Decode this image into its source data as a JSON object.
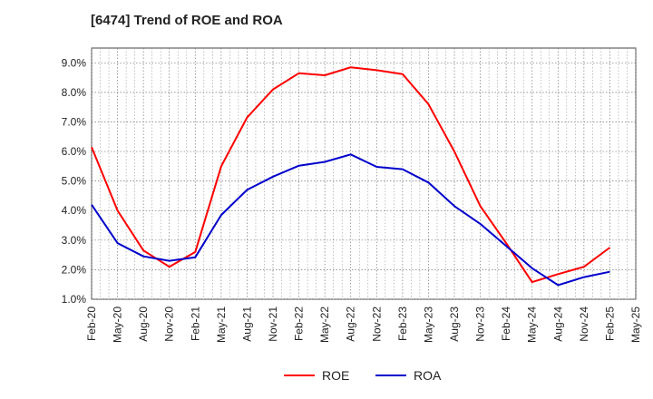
{
  "chart_data": {
    "type": "line",
    "title": "[6474]  Trend of ROE and ROA",
    "categories": [
      "Feb-20",
      "May-20",
      "Aug-20",
      "Nov-20",
      "Feb-21",
      "May-21",
      "Aug-21",
      "Nov-21",
      "Feb-22",
      "May-22",
      "Aug-22",
      "Nov-22",
      "Feb-23",
      "May-23",
      "Aug-23",
      "Nov-23",
      "Feb-24",
      "May-24",
      "Aug-24",
      "Nov-24",
      "Feb-25",
      "May-25"
    ],
    "yticks": [
      "1.0%",
      "2.0%",
      "3.0%",
      "4.0%",
      "5.0%",
      "6.0%",
      "7.0%",
      "8.0%",
      "9.0%"
    ],
    "ylim": [
      1.0,
      9.5
    ],
    "grid": true,
    "legend_position": "bottom",
    "series": [
      {
        "name": "ROE",
        "color": "#ff0000",
        "values": [
          6.15,
          4.0,
          2.65,
          2.1,
          2.6,
          5.5,
          7.15,
          8.1,
          8.65,
          8.58,
          8.85,
          8.75,
          8.62,
          7.6,
          6.0,
          4.15,
          2.9,
          1.58,
          1.85,
          2.1,
          2.75,
          null
        ]
      },
      {
        "name": "ROA",
        "color": "#0000cc",
        "values": [
          4.2,
          2.9,
          2.45,
          2.3,
          2.42,
          3.85,
          4.7,
          5.15,
          5.52,
          5.65,
          5.9,
          5.48,
          5.4,
          4.95,
          4.15,
          3.55,
          2.8,
          2.05,
          1.48,
          1.75,
          1.93,
          null
        ]
      }
    ]
  }
}
